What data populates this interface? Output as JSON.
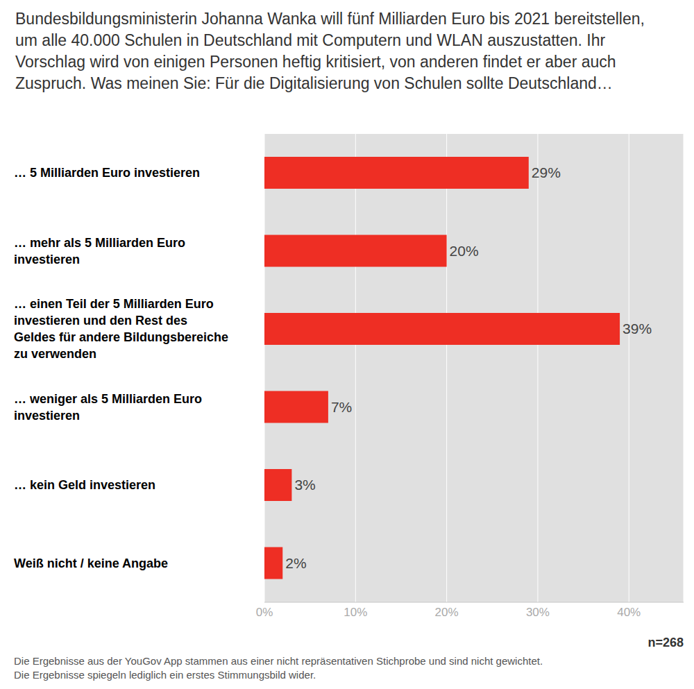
{
  "chart_data": {
    "type": "bar",
    "orientation": "horizontal",
    "title": "Bundesbildungsministerin Johanna Wanka will fünf Milliarden Euro bis 2021 bereitstellen, um alle 40.000 Schulen in Deutschland mit Computern und WLAN auszustatten. Ihr Vorschlag wird von einigen Personen heftig kritisiert, von anderen findet er aber auch Zuspruch. Was meinen Sie: Für die Digitalisierung von Schulen sollte Deutschland…",
    "categories": [
      "… 5 Milliarden Euro investieren",
      "… mehr als 5 Milliarden Euro investieren",
      "… einen Teil der 5 Milliarden Euro investieren und den Rest des Geldes für andere Bildungsbereiche zu verwenden",
      "… weniger als 5 Milliarden Euro investieren",
      "… kein Geld investieren",
      "Weiß nicht / keine Angabe"
    ],
    "values": [
      29,
      20,
      39,
      7,
      3,
      2
    ],
    "value_labels": [
      "29%",
      "20%",
      "39%",
      "7%",
      "3%",
      "2%"
    ],
    "data_labels": true,
    "color": "#ee2e24",
    "xlim": [
      0,
      46
    ],
    "xticks": [
      {
        "value": 0,
        "label": "0%"
      },
      {
        "value": 10,
        "label": "10%"
      },
      {
        "value": 20,
        "label": "20%"
      },
      {
        "value": 30,
        "label": "30%"
      },
      {
        "value": 40,
        "label": "40%"
      }
    ],
    "grid": true,
    "sample_size": "n=268",
    "notes": [
      "Die Ergebnisse aus der YouGov App stammen aus einer nicht repräsentativen Stichprobe und sind nicht gewichtet.",
      "Die Ergebnisse spiegeln lediglich ein erstes Stimmungsbild wider."
    ]
  }
}
